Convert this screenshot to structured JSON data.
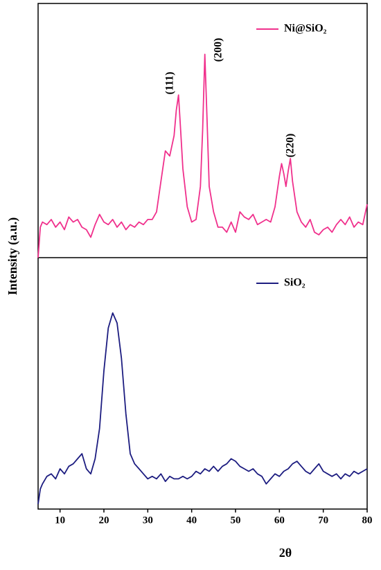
{
  "chart_data": [
    {
      "type": "line",
      "annotations": [
        "(111)",
        "(200)",
        "(220)"
      ],
      "xlim": [
        5,
        80
      ],
      "ylim": [
        0,
        100
      ],
      "x": [
        5,
        5.5,
        6,
        7,
        8,
        9,
        10,
        11,
        12,
        13,
        14,
        15,
        16,
        17,
        18,
        19,
        20,
        21,
        22,
        23,
        24,
        25,
        26,
        27,
        28,
        29,
        30,
        31,
        32,
        33,
        34,
        35,
        36,
        36.5,
        37,
        37.5,
        38,
        39,
        40,
        41,
        42,
        42.5,
        43,
        43.5,
        44,
        45,
        46,
        47,
        48,
        49,
        50,
        51,
        52,
        53,
        54,
        55,
        56,
        57,
        58,
        59,
        60,
        60.5,
        61,
        61.5,
        62,
        62.5,
        63,
        64,
        65,
        66,
        67,
        68,
        69,
        70,
        71,
        72,
        73,
        74,
        75,
        76,
        77,
        78,
        79,
        80
      ],
      "series": [
        {
          "name": "Ni@SiO₂",
          "color": "#f0308c",
          "values": [
            0,
            12,
            14,
            13,
            15,
            12,
            14,
            11,
            16,
            14,
            15,
            12,
            11,
            8,
            13,
            17,
            14,
            13,
            15,
            12,
            14,
            11,
            13,
            12,
            14,
            13,
            15,
            15,
            18,
            30,
            42,
            40,
            48,
            58,
            64,
            50,
            35,
            20,
            14,
            15,
            28,
            50,
            80,
            55,
            28,
            18,
            12,
            12,
            10,
            14,
            10,
            18,
            16,
            15,
            17,
            13,
            14,
            15,
            14,
            20,
            32,
            37,
            33,
            28,
            34,
            39,
            30,
            18,
            14,
            12,
            15,
            10,
            9,
            11,
            12,
            10,
            13,
            15,
            13,
            16,
            12,
            14,
            13,
            21
          ]
        }
      ],
      "legend": "upper right"
    },
    {
      "type": "line",
      "xlabel": "2θ",
      "ylabel": "Intensity (a.u.)",
      "xlim": [
        5,
        80
      ],
      "ylim": [
        0,
        100
      ],
      "xticks": [
        10,
        20,
        30,
        40,
        50,
        60,
        70,
        80
      ],
      "x": [
        5,
        5.5,
        6,
        7,
        8,
        9,
        10,
        11,
        12,
        13,
        14,
        15,
        16,
        17,
        18,
        19,
        20,
        21,
        22,
        23,
        24,
        25,
        26,
        27,
        28,
        29,
        30,
        31,
        32,
        33,
        34,
        35,
        36,
        37,
        38,
        39,
        40,
        41,
        42,
        43,
        44,
        45,
        46,
        47,
        48,
        49,
        50,
        51,
        52,
        53,
        54,
        55,
        56,
        57,
        58,
        59,
        60,
        61,
        62,
        63,
        64,
        65,
        66,
        67,
        68,
        69,
        70,
        71,
        72,
        73,
        74,
        75,
        76,
        77,
        78,
        79,
        80
      ],
      "series": [
        {
          "name": "SiO₂",
          "color": "#1c1c80",
          "values": [
            2,
            8,
            10,
            13,
            14,
            12,
            16,
            14,
            17,
            18,
            20,
            22,
            16,
            14,
            20,
            32,
            55,
            72,
            78,
            74,
            60,
            38,
            22,
            18,
            16,
            14,
            12,
            13,
            12,
            14,
            11,
            13,
            12,
            12,
            13,
            12,
            13,
            15,
            14,
            16,
            15,
            17,
            15,
            17,
            18,
            20,
            19,
            17,
            16,
            15,
            16,
            14,
            13,
            10,
            12,
            14,
            13,
            15,
            16,
            18,
            19,
            17,
            15,
            14,
            16,
            18,
            15,
            14,
            13,
            14,
            12,
            14,
            13,
            15,
            14,
            15,
            16
          ]
        }
      ],
      "legend": "upper right"
    }
  ]
}
